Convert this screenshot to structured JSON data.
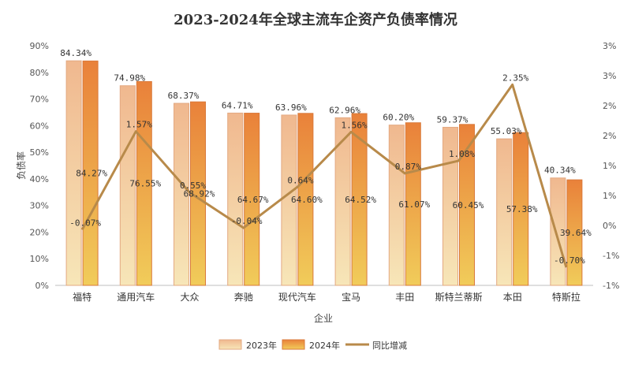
{
  "chart_data": {
    "type": "bar",
    "title": "2023-2024年全球主流车企资产负债率情况",
    "xlabel": "企业",
    "ylabel": "负债率",
    "categories": [
      "福特",
      "通用汽车",
      "大众",
      "奔驰",
      "现代汽车",
      "宝马",
      "丰田",
      "斯特兰蒂斯",
      "本田",
      "特斯拉"
    ],
    "series": [
      {
        "name": "2023年",
        "type": "bar",
        "axis": "left",
        "color": "#f2c4a0",
        "values": [
          84.34,
          74.98,
          68.37,
          64.71,
          63.96,
          62.96,
          60.2,
          59.37,
          55.03,
          40.34
        ],
        "labels": [
          "84.34%",
          "74.98%",
          "68.37%",
          "64.71%",
          "63.96%",
          "62.96%",
          "60.20%",
          "59.37%",
          "55.03%",
          "40.34%"
        ]
      },
      {
        "name": "2024年",
        "type": "bar",
        "axis": "left",
        "color": "#ea8a3c",
        "values": [
          84.27,
          76.55,
          68.92,
          64.67,
          64.6,
          64.52,
          61.07,
          60.45,
          57.38,
          39.64
        ],
        "labels": [
          "84.27%",
          "76.55%",
          "68.92%",
          "64.67%",
          "64.60%",
          "64.52%",
          "61.07%",
          "60.45%",
          "57.38%",
          "39.64%"
        ]
      },
      {
        "name": "同比增减",
        "type": "line",
        "axis": "right",
        "color": "#b88a4a",
        "values": [
          -0.07,
          1.57,
          0.55,
          -0.04,
          0.64,
          1.56,
          0.87,
          1.08,
          2.35,
          -0.7
        ],
        "labels": [
          "-0.07%",
          "1.57%",
          "0.55%",
          "-0.04%",
          "0.64%",
          "1.56%",
          "0.87%",
          "1.08%",
          "2.35%",
          "-0.70%"
        ]
      }
    ],
    "y_left": {
      "min": 0,
      "max": 90,
      "ticks": [
        "0%",
        "10%",
        "20%",
        "30%",
        "40%",
        "50%",
        "60%",
        "70%",
        "80%",
        "90%"
      ]
    },
    "y_right": {
      "min": -1,
      "max": 3,
      "ticks": [
        "-1%",
        "-1%",
        "0%",
        "1%",
        "1%",
        "2%",
        "2%",
        "3%",
        "3%"
      ]
    },
    "legend": {
      "position": "bottom",
      "items": [
        "2023年",
        "2024年",
        "同比增减"
      ]
    },
    "grid": false
  }
}
